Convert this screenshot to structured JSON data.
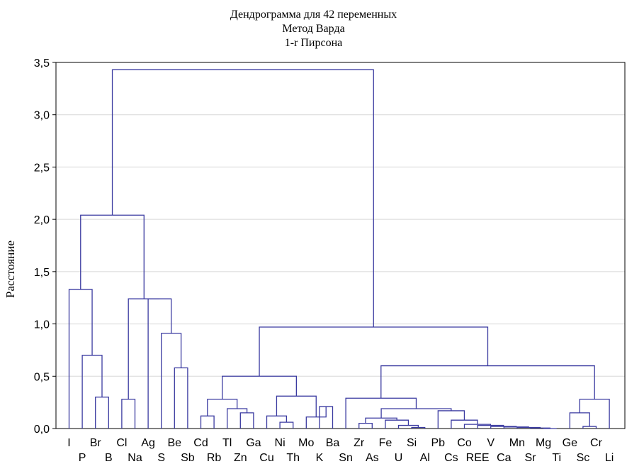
{
  "chart_data": {
    "type": "dendrogram",
    "title_lines": [
      "Дендрограмма для 42 переменных",
      "Метод Варда",
      "1-r Пирсона"
    ],
    "ylabel": "Расстояние",
    "xlabel": "",
    "ylim": [
      0,
      3.5
    ],
    "yticks": [
      "0,0",
      "0,5",
      "1,0",
      "1,5",
      "2,0",
      "2,5",
      "3,0",
      "3,5"
    ],
    "yticks_values": [
      0,
      0.5,
      1.0,
      1.5,
      2.0,
      2.5,
      3.0,
      3.5
    ],
    "grid": true,
    "leaves": [
      "I",
      "P",
      "Br",
      "B",
      "Cl",
      "Na",
      "Ag",
      "S",
      "Be",
      "Sb",
      "Cd",
      "Rb",
      "Tl",
      "Zn",
      "Ga",
      "Cu",
      "Ni",
      "Th",
      "Mo",
      "K",
      "Ba",
      "Sn",
      "Zr",
      "As",
      "Fe",
      "U",
      "Si",
      "Al",
      "Pb",
      "Cs",
      "Co",
      "REE",
      "V",
      "Ca",
      "Mn",
      "Sr",
      "Mg",
      "Ti",
      "Ge",
      "Sc",
      "Cr",
      "Li"
    ],
    "merges": [
      [
        "Br",
        "B",
        0.3
      ],
      [
        "P",
        "Br+B",
        0.7
      ],
      [
        "I",
        "P+Br+B",
        1.33
      ],
      [
        "Cl",
        "Na",
        0.28
      ],
      [
        "Be",
        "Sb",
        0.58
      ],
      [
        "S",
        "Be+Sb",
        0.91
      ],
      [
        "Ag",
        "S+Be+Sb",
        1.24
      ],
      [
        "Cl+Na",
        "Ag+S+Be+Sb",
        1.24
      ],
      [
        "I-group",
        "Cl-group",
        2.04
      ],
      [
        "Cd",
        "Rb",
        0.12
      ],
      [
        "Zn",
        "Ga",
        0.15
      ],
      [
        "Tl",
        "Zn+Ga",
        0.19
      ],
      [
        "Cd+Rb",
        "Tl+Zn+Ga",
        0.28
      ],
      [
        "Ni",
        "Th",
        0.06
      ],
      [
        "Cu",
        "Ni+Th",
        0.12
      ],
      [
        "Ba",
        "K",
        0.21
      ],
      [
        "Mo",
        "Ba+K",
        0.11
      ],
      [
        "Cu-group",
        "Mo-group",
        0.31
      ],
      [
        "Cd-group",
        "Cu-group",
        0.5
      ],
      [
        "Si",
        "Al",
        0.01
      ],
      [
        "U",
        "Si+Al",
        0.03
      ],
      [
        "Fe",
        "U+Si+Al",
        0.08
      ],
      [
        "Zr",
        "As",
        0.05
      ],
      [
        "Zr+As",
        "Fe-group",
        0.1
      ],
      [
        "Mg",
        "Ti",
        0.0
      ],
      [
        "Sr",
        "Mg+Ti",
        0.005
      ],
      [
        "Mn",
        "Sr+Mg+Ti",
        0.01
      ],
      [
        "Ca",
        "Mn-group",
        0.015
      ],
      [
        "V",
        "Ca-group",
        0.02
      ],
      [
        "REE",
        "V-group",
        0.03
      ],
      [
        "Co",
        "REE-group",
        0.04
      ],
      [
        "Cs",
        "Co-group",
        0.08
      ],
      [
        "Pb",
        "Cs-group",
        0.17
      ],
      [
        "Zr-group",
        "Pb-group",
        0.19
      ],
      [
        "Sn",
        "Zr-group",
        0.29
      ],
      [
        "Sc",
        "Cr",
        0.02
      ],
      [
        "Ge",
        "Sc+Cr",
        0.15
      ],
      [
        "Li",
        "Ge-group",
        0.13
      ],
      [
        "Ge-group",
        "Li-group",
        0.28
      ],
      [
        "Sn-group",
        "Ge-group",
        0.6
      ],
      [
        "Cd-group",
        "Sn-group",
        0.97
      ],
      [
        "I-Cl group",
        "Cd-Sn group",
        3.43
      ]
    ]
  }
}
